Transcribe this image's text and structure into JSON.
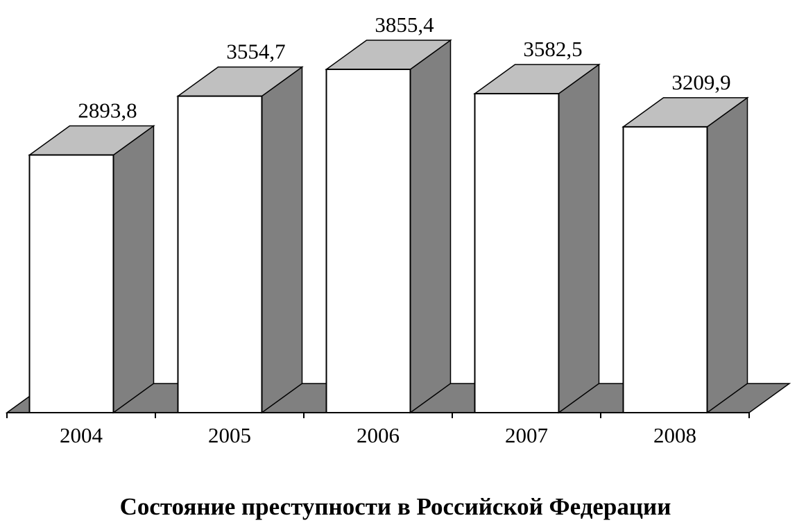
{
  "chart_data": {
    "type": "bar3d",
    "title": "Состояние преступности в Российской Федерации",
    "categories": [
      "2004",
      "2005",
      "2006",
      "2007",
      "2008"
    ],
    "values": [
      2893.8,
      3554.7,
      3855.4,
      3582.5,
      3209.9
    ],
    "value_labels": [
      "2893,8",
      "3554,7",
      "3855,4",
      "3582,5",
      "3209,9"
    ],
    "colors": {
      "front": "#ffffff",
      "top": "#c0c0c0",
      "side": "#808080",
      "floor": "#808080"
    }
  }
}
